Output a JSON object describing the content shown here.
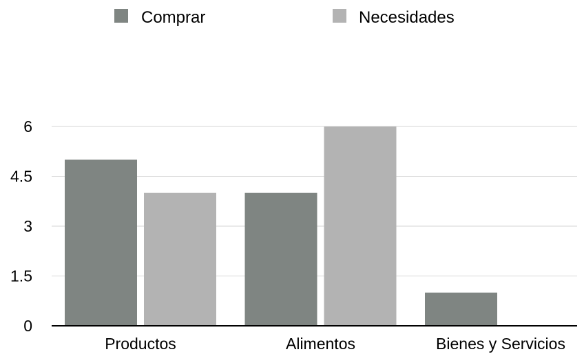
{
  "chart_data": {
    "type": "bar",
    "title": "",
    "xlabel": "",
    "ylabel": "",
    "categories": [
      "Productos",
      "Alimentos",
      "Bienes y Servicios"
    ],
    "series": [
      {
        "name": "Comprar",
        "values": [
          5,
          4,
          1
        ],
        "color": "#7f8582"
      },
      {
        "name": "Necesidades",
        "values": [
          4,
          6,
          0
        ],
        "color": "#b3b3b3"
      }
    ],
    "ylim": [
      0,
      6
    ],
    "yticks": [
      "0",
      "1.5",
      "3",
      "4.5",
      "6"
    ],
    "ytick_values": [
      0,
      1.5,
      3,
      4.5,
      6
    ],
    "grid": true,
    "legend_position": "top"
  }
}
